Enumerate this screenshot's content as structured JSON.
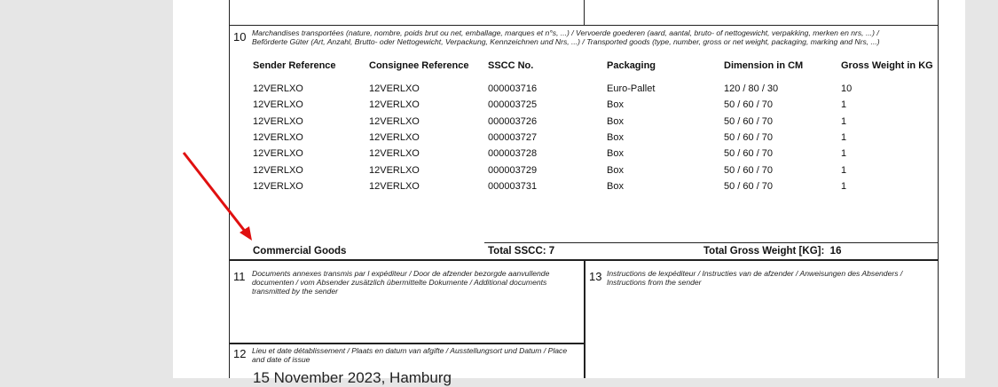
{
  "section10": {
    "number": "10",
    "label_line1": "Marchandises transportées (nature, nombre, poids brut ou net, emballage, marques et n°s, ...) / Vervoerde goederen (aard, aantal, bruto- of nettogewicht, verpakking, merken en nrs, ...) /",
    "label_line2": "Beförderte Güter (Art, Anzahl, Brutto- oder Nettogewicht, Verpackung, Kennzeichnen und Nrs, ...) / Transported goods (type, number, gross or net weight, packaging, marking and Nrs, ...)",
    "columns": [
      "Sender Reference",
      "Consignee Reference",
      "SSCC No.",
      "Packaging",
      "Dimension in CM",
      "Gross Weight in KG"
    ],
    "rows": [
      [
        "12VERLXO",
        "12VERLXO",
        "000003716",
        "Euro-Pallet",
        "120 / 80 / 30",
        "10"
      ],
      [
        "12VERLXO",
        "12VERLXO",
        "000003725",
        "Box",
        "50 / 60 / 70",
        "1"
      ],
      [
        "12VERLXO",
        "12VERLXO",
        "000003726",
        "Box",
        "50 / 60 / 70",
        "1"
      ],
      [
        "12VERLXO",
        "12VERLXO",
        "000003727",
        "Box",
        "50 / 60 / 70",
        "1"
      ],
      [
        "12VERLXO",
        "12VERLXO",
        "000003728",
        "Box",
        "50 / 60 / 70",
        "1"
      ],
      [
        "12VERLXO",
        "12VERLXO",
        "000003729",
        "Box",
        "50 / 60 / 70",
        "1"
      ],
      [
        "12VERLXO",
        "12VERLXO",
        "000003731",
        "Box",
        "50 / 60 / 70",
        "1"
      ]
    ],
    "goods": "Commercial Goods",
    "total_sscc": "Total SSCC: 7",
    "total_weight": "Total Gross Weight [KG]:  16"
  },
  "section11": {
    "number": "11",
    "label": "Documents annexes transmis par l expéditeur / Door de afzender bezorgde aanvullende documenten / vom Absender zusätzlich übermittelte Dokumente / Additional documents transmitted by the sender"
  },
  "section13": {
    "number": "13",
    "label": "Instructions de lexpéditeur / Instructies van de afzender / Anweisungen des Absenders / Instructions from the sender"
  },
  "section12": {
    "number": "12",
    "label": "Lieu et date détablissement / Plaats en datum van afgifte / Ausstellungsort und Datum / Place and date of issue",
    "value": "15 November 2023, Hamburg"
  },
  "annotation": {
    "arrow_color": "#e01010"
  }
}
